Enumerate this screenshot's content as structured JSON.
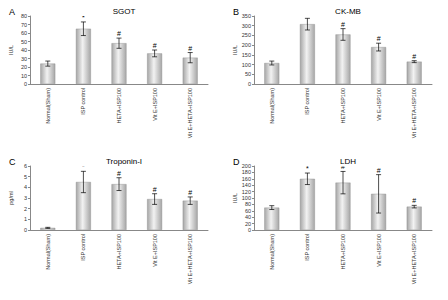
{
  "chart_data": [
    {
      "type": "bar",
      "panel": "A",
      "title": "SGOT",
      "y_label": "IU/L",
      "categories": [
        "Normal(Sham)",
        "ISP control",
        "HETA+ISP100",
        "Vit E+ISP100",
        "Vit E+HETA+ISP100"
      ],
      "values": [
        24,
        65,
        48,
        36,
        31
      ],
      "errors": [
        3,
        8,
        6,
        4,
        6
      ],
      "annotations": [
        null,
        "*",
        "#",
        "#",
        "#"
      ],
      "color": "#a6a6a6",
      "ylim": [
        0,
        80
      ],
      "yticks": [
        0,
        10,
        20,
        30,
        40,
        50,
        60,
        70,
        80
      ],
      "grid": false
    },
    {
      "type": "bar",
      "panel": "B",
      "title": "CK-MB",
      "y_label": "IU/L",
      "categories": [
        "Normal(Sham)",
        "ISP control",
        "HETA+ISP100",
        "Vit E+ISP100",
        "Vit E+HETA+ISP100"
      ],
      "values": [
        108,
        308,
        255,
        190,
        115
      ],
      "errors": [
        10,
        30,
        30,
        20,
        5
      ],
      "annotations": [
        null,
        null,
        "#",
        "#",
        "#"
      ],
      "color": "#a6a6a6",
      "ylim": [
        0,
        350
      ],
      "yticks": [
        0,
        50,
        100,
        150,
        200,
        250,
        300,
        350
      ],
      "grid": false
    },
    {
      "type": "bar",
      "panel": "C",
      "title": "Troponin-I",
      "y_label": "pg/ml",
      "categories": [
        "Normal(Sham)",
        "ISP control",
        "HETA+ISP100",
        "Vit E+ISP100",
        "Vit E+HETA+ISP100"
      ],
      "values": [
        0.2,
        4.5,
        4.3,
        2.9,
        2.75
      ],
      "errors": [
        0.05,
        1.0,
        0.6,
        0.5,
        0.35
      ],
      "annotations": [
        null,
        "*",
        "#",
        "#",
        "#"
      ],
      "color": "#a6a6a6",
      "ylim": [
        0,
        6
      ],
      "yticks": [
        0,
        1,
        2,
        3,
        4,
        5,
        6
      ],
      "grid": false
    },
    {
      "type": "bar",
      "panel": "D",
      "title": "LDH",
      "y_label": "IU/L",
      "categories": [
        "Normal(Sham)",
        "ISP control",
        "HETA+ISP100",
        "Vit E+ISP100",
        "Vit E+HETA+ISP100"
      ],
      "values": [
        70,
        160,
        148,
        113,
        73
      ],
      "errors": [
        6,
        18,
        35,
        60,
        4
      ],
      "annotations": [
        null,
        "*",
        "#",
        "#",
        "#"
      ],
      "color": "#a6a6a6",
      "ylim": [
        0,
        200
      ],
      "yticks": [
        0,
        20,
        40,
        60,
        80,
        100,
        120,
        140,
        160,
        180,
        200
      ],
      "grid": false
    }
  ]
}
